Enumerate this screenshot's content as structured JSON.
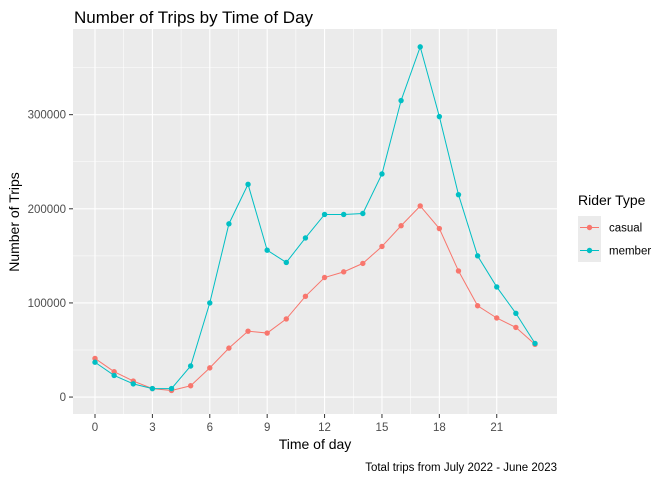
{
  "chart_data": {
    "type": "line",
    "title": "Number of Trips by Time of Day",
    "xlabel": "Time of day",
    "ylabel": "Number of Trips",
    "caption": "Total trips from July 2022 - June 2023",
    "legend_title": "Rider Type",
    "legend_position": "right",
    "grid": true,
    "x": [
      0,
      1,
      2,
      3,
      4,
      5,
      6,
      7,
      8,
      9,
      10,
      11,
      12,
      13,
      14,
      15,
      16,
      17,
      18,
      19,
      20,
      21,
      22,
      23
    ],
    "x_ticks": [
      0,
      3,
      6,
      9,
      12,
      15,
      18,
      21
    ],
    "x_tick_labels": [
      "0",
      "3",
      "6",
      "9",
      "12",
      "15",
      "18",
      "21"
    ],
    "y_ticks": [
      0,
      100000,
      200000,
      300000
    ],
    "y_tick_labels": [
      "0",
      "100000",
      "200000",
      "300000"
    ],
    "xlim": [
      -1.15,
      24.15
    ],
    "ylim": [
      -18000,
      391000
    ],
    "series": [
      {
        "name": "casual",
        "color": "#F8766D",
        "values": [
          41000,
          27000,
          17000,
          9000,
          7000,
          12000,
          31000,
          52000,
          70000,
          68000,
          83000,
          107000,
          127000,
          133000,
          142000,
          160000,
          182000,
          203000,
          179000,
          134000,
          97000,
          84000,
          74000,
          56000
        ]
      },
      {
        "name": "member",
        "color": "#00BFC4",
        "values": [
          37000,
          23000,
          14000,
          9000,
          9000,
          33000,
          100000,
          184000,
          226000,
          156000,
          143000,
          169000,
          194000,
          194000,
          195000,
          237000,
          315000,
          372000,
          298000,
          215000,
          150000,
          117000,
          89000,
          57000
        ]
      }
    ]
  }
}
